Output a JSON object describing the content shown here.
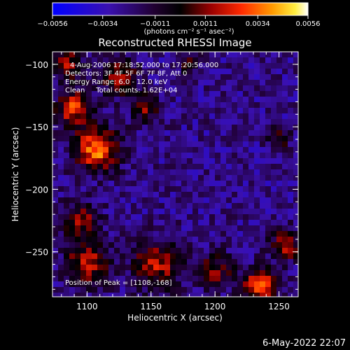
{
  "chart_data": {
    "type": "heatmap",
    "title": "Reconstructed RHESSI Image",
    "xlabel": "Heliocentric X (arcsec)",
    "ylabel": "Heliocentric Y (arcsec)",
    "xlim": [
      1073,
      1265
    ],
    "ylim": [
      -286,
      -90
    ],
    "x_ticks": [
      1100,
      1150,
      1200,
      1250
    ],
    "y_ticks": [
      -100,
      -150,
      -200,
      -250
    ],
    "x_tick_labels": [
      "1100",
      "1150",
      "1200",
      "1250"
    ],
    "y_tick_labels": [
      "−100",
      "−150",
      "−200",
      "−250"
    ],
    "colorbar": {
      "ticks": [
        -0.0056,
        -0.0034,
        -0.0011,
        0.0011,
        0.0034,
        0.0056
      ],
      "tick_labels": [
        "−0.0056",
        "−0.0034",
        "−0.0011",
        "0.0011",
        "0.0034",
        "0.0056"
      ],
      "unit_label": "(photons cm⁻² s⁻¹ asec⁻²)",
      "range": [
        -0.0056,
        0.0056
      ]
    },
    "annotations": {
      "time_range": "4-Aug-2006 17:18:52.000 to 17:20:56.000",
      "detectors": "Detectors: 3F 4F 5F 6F 7F 8F, Att 0",
      "energy_range": "Energy Range: 6.0 - 12.0 keV",
      "method_counts": "Clean     Total counts: 1.62E+04",
      "peak_position": "Position of Peak = [1108,-168]"
    },
    "peak": [
      1108,
      -168
    ]
  },
  "footer": {
    "timestamp": "6-May-2022 22:07"
  },
  "colors": {
    "background": "#000000",
    "text": "#ffffff",
    "colormap": [
      "#0000ff",
      "#4b0082",
      "#000000",
      "#b00000",
      "#ff3000",
      "#ff9000",
      "#ffff40",
      "#ffffff"
    ]
  }
}
